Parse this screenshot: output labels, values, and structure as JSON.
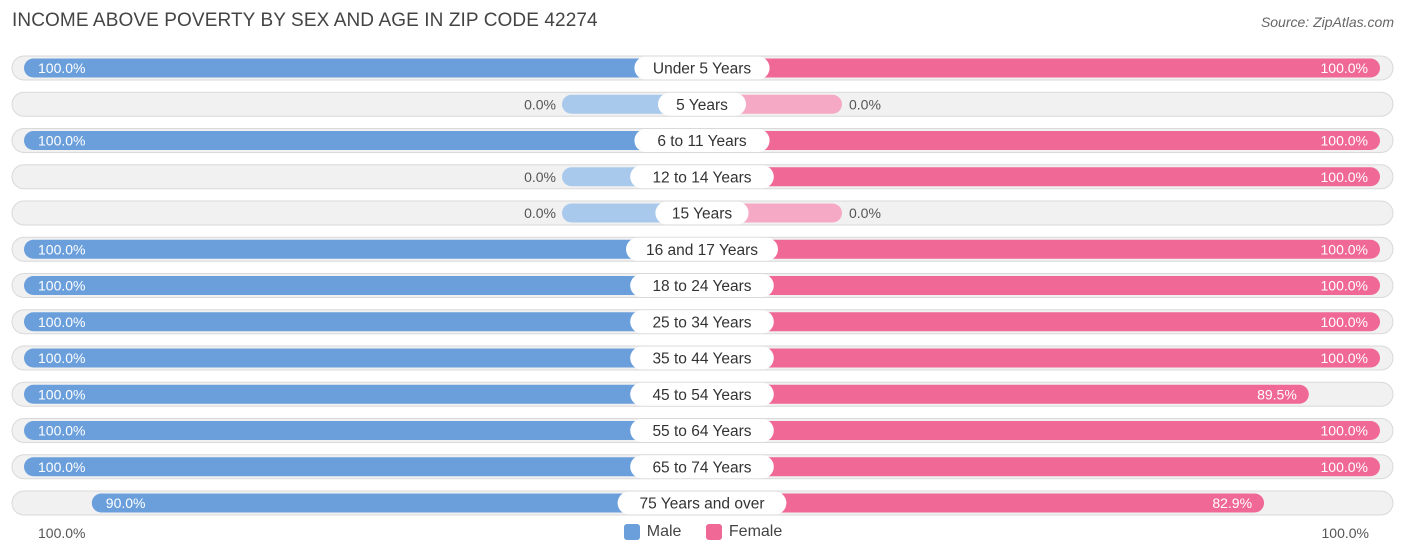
{
  "title": "INCOME ABOVE POVERTY BY SEX AND AGE IN ZIP CODE 42274",
  "source": "Source: ZipAtlas.com",
  "colors": {
    "male": "#6a9fdc",
    "male_light": "#a9c9ec",
    "female": "#f06895",
    "female_light": "#f6a9c4"
  },
  "chart_data": {
    "type": "bar",
    "orientation": "horizontal-diverging",
    "title": "INCOME ABOVE POVERTY BY SEX AND AGE IN ZIP CODE 42274",
    "categories": [
      "Under 5 Years",
      "5 Years",
      "6 to 11 Years",
      "12 to 14 Years",
      "15 Years",
      "16 and 17 Years",
      "18 to 24 Years",
      "25 to 34 Years",
      "35 to 44 Years",
      "45 to 54 Years",
      "55 to 64 Years",
      "65 to 74 Years",
      "75 Years and over"
    ],
    "series": [
      {
        "name": "Male",
        "values": [
          100.0,
          0.0,
          100.0,
          0.0,
          0.0,
          100.0,
          100.0,
          100.0,
          100.0,
          100.0,
          100.0,
          100.0,
          90.0
        ],
        "labels": [
          "100.0%",
          "0.0%",
          "100.0%",
          "0.0%",
          "0.0%",
          "100.0%",
          "100.0%",
          "100.0%",
          "100.0%",
          "100.0%",
          "100.0%",
          "100.0%",
          "90.0%"
        ]
      },
      {
        "name": "Female",
        "values": [
          100.0,
          0.0,
          100.0,
          100.0,
          0.0,
          100.0,
          100.0,
          100.0,
          100.0,
          89.5,
          100.0,
          100.0,
          82.9
        ],
        "labels": [
          "100.0%",
          "0.0%",
          "100.0%",
          "100.0%",
          "0.0%",
          "100.0%",
          "100.0%",
          "100.0%",
          "100.0%",
          "89.5%",
          "100.0%",
          "100.0%",
          "82.9%"
        ]
      }
    ],
    "xlim": [
      0,
      100
    ],
    "axis_labels": {
      "left": "100.0%",
      "right": "100.0%"
    },
    "legend": {
      "position": "bottom-center",
      "entries": [
        "Male",
        "Female"
      ]
    },
    "grid": false
  }
}
